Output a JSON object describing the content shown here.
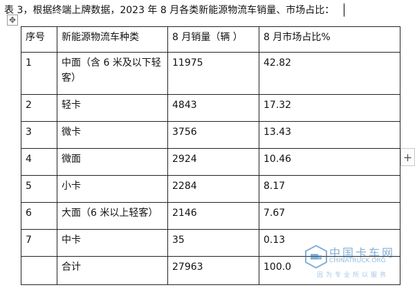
{
  "caption": "表 3，根据终端上牌数据，2023 年 8 月各类新能源物流车销量、市场占比：",
  "icons": {
    "move_handle": "move-cross-icon",
    "add_row": "plus-icon"
  },
  "table": {
    "headers": [
      "序号",
      "新能源物流车种类",
      "8 月销量（辆 ）",
      "8 月市场占比%"
    ],
    "rows": [
      {
        "no": "1",
        "type": "中面（含 6 米及以下轻客）",
        "sales": "11975",
        "share": "42.82"
      },
      {
        "no": "2",
        "type": "轻卡",
        "sales": "4843",
        "share": "17.32"
      },
      {
        "no": "3",
        "type": "微卡",
        "sales": "3756",
        "share": "13.43"
      },
      {
        "no": "4",
        "type": "微面",
        "sales": "2924",
        "share": "10.46"
      },
      {
        "no": "5",
        "type": "小卡",
        "sales": "2284",
        "share": "8.17"
      },
      {
        "no": "6",
        "type": "大面（6 米以上轻客）",
        "sales": "2146",
        "share": "7.67"
      },
      {
        "no": "7",
        "type": "中卡",
        "sales": "35",
        "share": "0.13"
      },
      {
        "no": "",
        "type": "合计",
        "sales": "27963",
        "share": "100.0"
      }
    ]
  },
  "watermark": {
    "title": "中国卡车网",
    "site": "CHINATRUCK.ORG",
    "slogan": "因为专业所以服务",
    "color": "#1f6fb5"
  }
}
